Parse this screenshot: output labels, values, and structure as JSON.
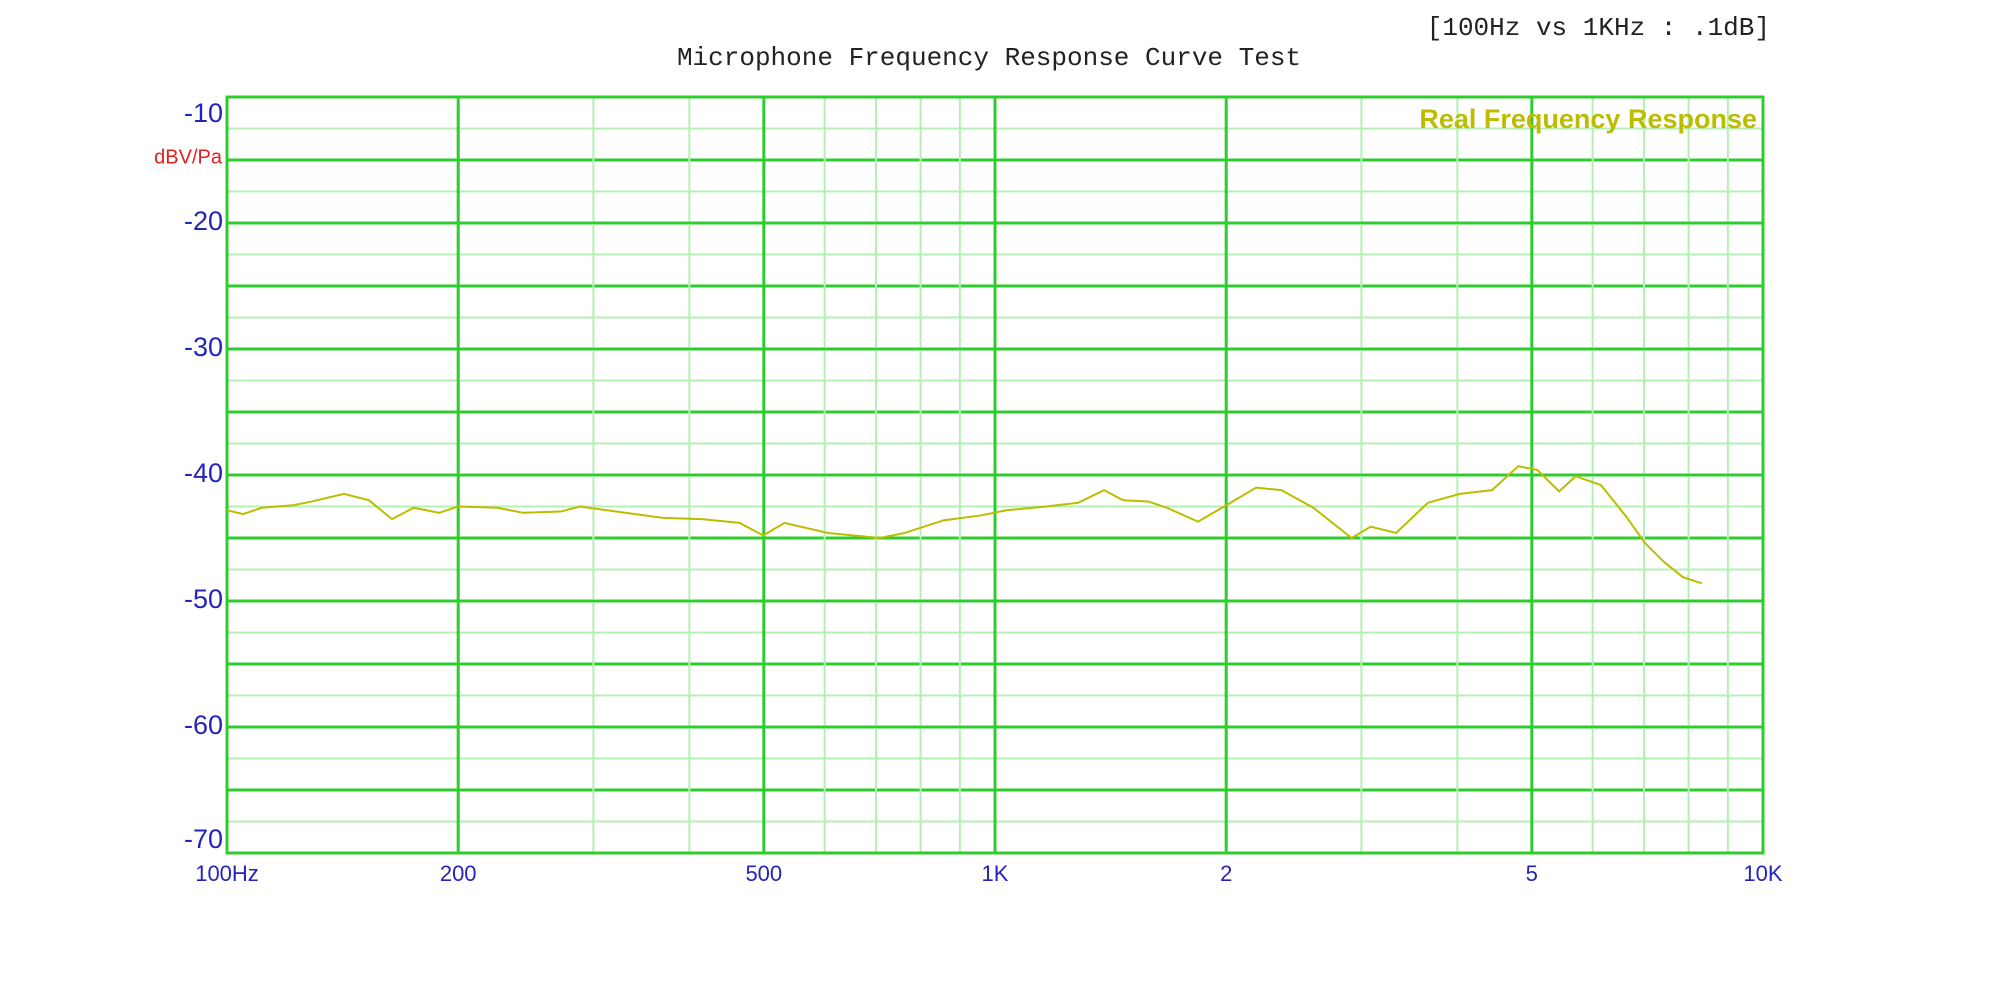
{
  "chart_data": {
    "type": "line",
    "title": "Microphone Frequency Response Curve Test",
    "annotation": "[100Hz vs 1KHz :     .1dB]",
    "y_label": "dBV/Pa",
    "log_x": true,
    "grid": true,
    "legend": "upper right",
    "xlim": [
      100,
      10000
    ],
    "ylim": [
      -70,
      -10
    ],
    "xticks": [
      {
        "value": 100,
        "label": "100Hz"
      },
      200,
      500,
      {
        "value": 1000,
        "label": "1K"
      },
      {
        "value": 2000,
        "label": "2"
      },
      {
        "value": 5000,
        "label": "5"
      },
      {
        "value": 10000,
        "label": "10K"
      }
    ],
    "yticks": [
      -10,
      -20,
      -30,
      -40,
      -50,
      -60,
      -70
    ],
    "x": [
      100,
      105,
      111,
      122,
      129,
      142,
      153,
      164,
      175,
      189,
      200,
      225,
      243,
      272,
      288,
      330,
      370,
      415,
      465,
      499,
      532,
      606,
      708,
      763,
      857,
      960,
      1035,
      1167,
      1283,
      1387,
      1468,
      1583,
      1674,
      1838,
      1988,
      2187,
      2360,
      2597,
      2913,
      3084,
      3329,
      3662,
      4029,
      4438,
      4802,
      5083,
      5426,
      5703,
      6152,
      6635,
      7021,
      7430,
      7863,
      8321
    ],
    "series": [
      {
        "name": "Real Frequency Response",
        "color": "#bcbc00",
        "values": [
          -42.8,
          -43.1,
          -42.6,
          -42.4,
          -42.1,
          -41.5,
          -42.0,
          -43.5,
          -42.6,
          -43.0,
          -42.5,
          -42.6,
          -43.0,
          -42.9,
          -42.5,
          -43.0,
          -43.4,
          -43.5,
          -43.8,
          -44.8,
          -43.8,
          -44.6,
          -45.0,
          -44.6,
          -43.6,
          -43.2,
          -42.8,
          -42.5,
          -42.2,
          -41.2,
          -42.0,
          -42.1,
          -42.6,
          -43.7,
          -42.5,
          -41.0,
          -41.2,
          -42.6,
          -45.0,
          -44.1,
          -44.6,
          -42.2,
          -41.5,
          -41.2,
          -39.3,
          -39.6,
          -41.3,
          -40.1,
          -40.8,
          -43.3,
          -45.4,
          -46.9,
          -48.1,
          -48.6
        ]
      }
    ]
  }
}
